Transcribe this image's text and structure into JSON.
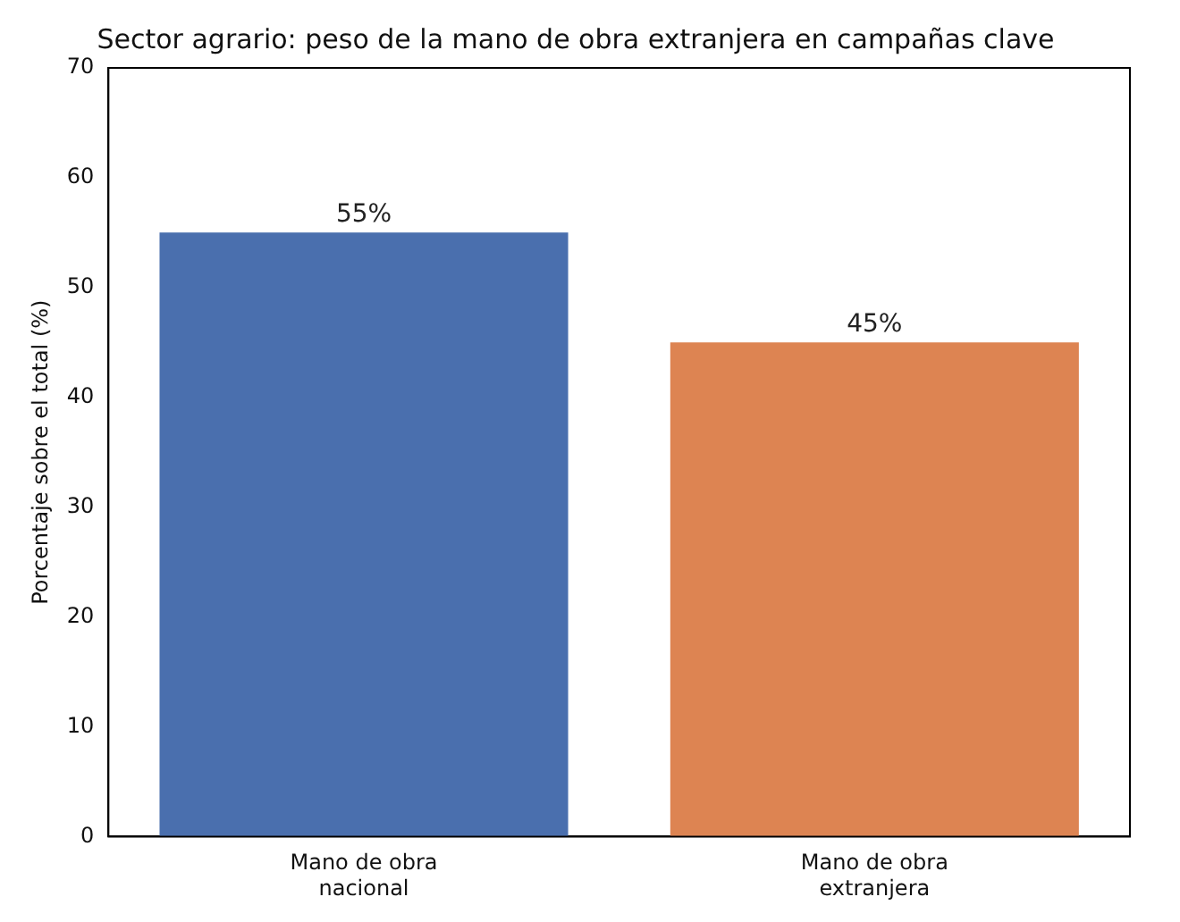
{
  "chart_data": {
    "type": "bar",
    "title": "Sector agrario: peso de la mano de obra extranjera en campañas clave",
    "categories": [
      "Mano de obra\nnacional",
      "Mano de obra\nextranjera"
    ],
    "values": [
      55,
      45
    ],
    "colors": [
      "#4a6fae",
      "#dd8452"
    ],
    "value_labels": [
      "55%",
      "45%"
    ],
    "ylabel": "Porcentaje sobre el total (%)",
    "ylim": [
      0,
      70
    ],
    "yticks": [
      0,
      10,
      20,
      30,
      40,
      50,
      60,
      70
    ],
    "grid": false
  }
}
